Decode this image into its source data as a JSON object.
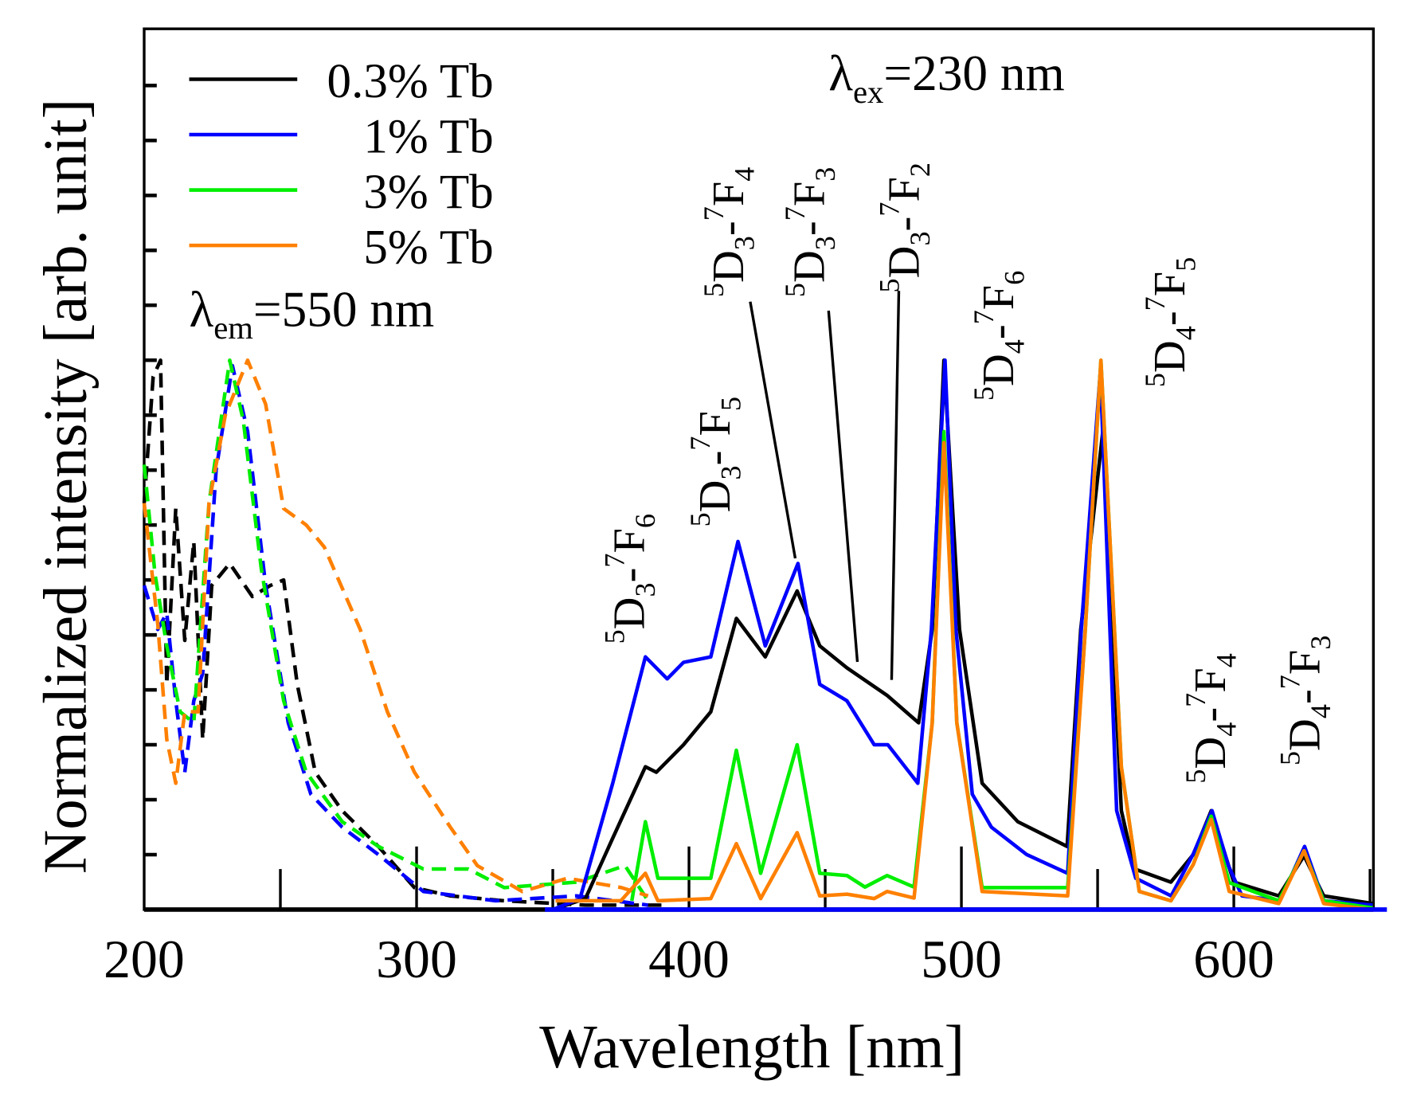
{
  "chart_data": {
    "type": "line",
    "title": "",
    "xlabel": "Wavelength [nm]",
    "ylabel": "Normalized intensity [arb. unit]",
    "xlim": [
      200,
      651
    ],
    "ylim": [
      0,
      1.6
    ],
    "xticks": [
      200,
      300,
      400,
      500,
      600
    ],
    "xtick_labels": [
      "200",
      "300",
      "400",
      "500",
      "600"
    ],
    "yticks_minor_step": 0.1,
    "ytick_labels_shown": false,
    "grid": false,
    "legend_position": "top-left",
    "legend": [
      {
        "name": "0.3% Tb",
        "color": "#000000"
      },
      {
        "name": "1% Tb",
        "color": "#0000ff"
      },
      {
        "name": "3% Tb",
        "color": "#00ee00"
      },
      {
        "name": "5% Tb",
        "color": "#ff8000"
      }
    ],
    "annotations": {
      "excitation_label": {
        "symbol": "λ",
        "sub": "em",
        "rest": "=550 nm"
      },
      "emission_label": {
        "symbol": "λ",
        "sub": "ex",
        "rest": "=230 nm"
      },
      "transitions": [
        {
          "u1": "5",
          "t1": "D",
          "s1": "3",
          "u2": "7",
          "t2": "F",
          "s2": "6"
        },
        {
          "u1": "5",
          "t1": "D",
          "s1": "3",
          "u2": "7",
          "t2": "F",
          "s2": "5"
        },
        {
          "u1": "5",
          "t1": "D",
          "s1": "3",
          "u2": "7",
          "t2": "F",
          "s2": "4"
        },
        {
          "u1": "5",
          "t1": "D",
          "s1": "3",
          "u2": "7",
          "t2": "F",
          "s2": "3"
        },
        {
          "u1": "5",
          "t1": "D",
          "s1": "3",
          "u2": "7",
          "t2": "F",
          "s2": "2"
        },
        {
          "u1": "5",
          "t1": "D",
          "s1": "4",
          "u2": "7",
          "t2": "F",
          "s2": "6"
        },
        {
          "u1": "5",
          "t1": "D",
          "s1": "4",
          "u2": "7",
          "t2": "F",
          "s2": "5"
        },
        {
          "u1": "5",
          "t1": "D",
          "s1": "4",
          "u2": "7",
          "t2": "F",
          "s2": "4"
        },
        {
          "u1": "5",
          "t1": "D",
          "s1": "4",
          "u2": "7",
          "t2": "F",
          "s2": "3"
        }
      ]
    },
    "series": [
      {
        "name": "0.3% Tb excitation",
        "color": "#000000",
        "style": "dashed",
        "x": [
          200,
          203.3,
          206,
          208.3,
          211.6,
          214.9,
          218.2,
          221.5,
          224.8,
          231.4,
          239.7,
          246.3,
          251.2,
          256.2,
          262.8,
          272.7,
          286,
          299.2,
          312.4,
          332.2,
          362,
          391.7
        ],
        "y": [
          0.74,
          0.97,
          1.0,
          0.41,
          0.73,
          0.49,
          0.67,
          0.31,
          0.59,
          0.63,
          0.57,
          0.59,
          0.6,
          0.41,
          0.25,
          0.18,
          0.115,
          0.04,
          0.025,
          0.016,
          0.008,
          0.008
        ]
      },
      {
        "name": "1% Tb excitation",
        "color": "#0000ff",
        "style": "dashed",
        "x": [
          200,
          205,
          208.3,
          211.6,
          214.9,
          218.2,
          221.5,
          226.4,
          232.4,
          238,
          244.6,
          252.9,
          261.2,
          272.7,
          286,
          302.5,
          329,
          358.7,
          385
        ],
        "y": [
          0.59,
          0.51,
          0.54,
          0.38,
          0.25,
          0.38,
          0.43,
          0.8,
          0.99,
          0.87,
          0.59,
          0.34,
          0.21,
          0.15,
          0.1,
          0.033,
          0.016,
          0.025,
          0.008
        ]
      },
      {
        "name": "3% Tb excitation",
        "color": "#00ee00",
        "style": "dashed",
        "x": [
          200,
          204,
          208.3,
          213.2,
          218.2,
          223.8,
          231.4,
          236.4,
          243,
          251.2,
          259.5,
          272.7,
          286,
          302.5,
          319,
          332.2,
          358.7,
          376.5,
          385
        ],
        "y": [
          0.81,
          0.61,
          0.48,
          0.36,
          0.34,
          0.74,
          1.0,
          0.89,
          0.62,
          0.38,
          0.25,
          0.16,
          0.115,
          0.074,
          0.074,
          0.04,
          0.05,
          0.08,
          0.016
        ]
      },
      {
        "name": "5% Tb excitation",
        "color": "#ff8000",
        "style": "dashed",
        "x": [
          200,
          205,
          208.3,
          211.6,
          214.9,
          219.8,
          223.8,
          229.8,
          238,
          244.6,
          251.2,
          259.5,
          266.1,
          279.3,
          289.3,
          299.2,
          312.4,
          322.3,
          338.8,
          355.4,
          375.2,
          385
        ],
        "y": [
          0.74,
          0.52,
          0.31,
          0.23,
          0.36,
          0.36,
          0.74,
          0.9,
          1.0,
          0.92,
          0.73,
          0.7,
          0.66,
          0.51,
          0.36,
          0.25,
          0.15,
          0.08,
          0.033,
          0.057,
          0.04,
          0.025
        ]
      },
      {
        "name": "0.3% Tb emission",
        "color": "#000000",
        "style": "solid",
        "x": [
          350,
          362,
          372,
          384,
          388,
          398,
          408,
          417.4,
          428,
          439.7,
          448,
          458,
          472.7,
          484.3,
          489.3,
          493.6,
          499.3,
          507.6,
          520.7,
          538.8,
          543.8,
          551.9,
          558.7,
          563.6,
          576.9,
          585.1,
          591.7,
          600,
          616.5,
          625.8,
          633,
          651
        ],
        "y": [
          0,
          0.02,
          0.13,
          0.26,
          0.25,
          0.3,
          0.36,
          0.53,
          0.46,
          0.58,
          0.48,
          0.44,
          0.39,
          0.34,
          0.51,
          1.0,
          0.51,
          0.23,
          0.16,
          0.115,
          0.51,
          0.87,
          0.18,
          0.074,
          0.05,
          0.1,
          0.18,
          0.05,
          0.025,
          0.098,
          0.025,
          0.011
        ]
      },
      {
        "name": "1% Tb emission",
        "color": "#0000ff",
        "style": "solid",
        "x": [
          350,
          360,
          372,
          384,
          392,
          398,
          408,
          418,
          428,
          440,
          448,
          458,
          468,
          473,
          484,
          489,
          494,
          498,
          504,
          511,
          524,
          539,
          544,
          551,
          557,
          564,
          577,
          585,
          592,
          598,
          603,
          617,
          626,
          633,
          651
        ],
        "y": [
          0,
          0.02,
          0.23,
          0.46,
          0.42,
          0.45,
          0.46,
          0.67,
          0.48,
          0.63,
          0.41,
          0.38,
          0.3,
          0.3,
          0.23,
          0.51,
          1.0,
          0.51,
          0.21,
          0.15,
          0.1,
          0.066,
          0.51,
          0.98,
          0.18,
          0.057,
          0.025,
          0.1,
          0.18,
          0.08,
          0.025,
          0.016,
          0.115,
          0.016,
          0.008
        ]
      },
      {
        "name": "3% Tb emission",
        "color": "#00ee00",
        "style": "solid",
        "x": [
          379,
          384,
          388.6,
          408,
          417.4,
          426.3,
          439.7,
          448,
          458,
          464.6,
          472.7,
          482.6,
          489.3,
          493.6,
          498.3,
          507.6,
          539,
          545.5,
          551.2,
          558.7,
          565.3,
          576.9,
          585.1,
          591.7,
          598.3,
          616.5,
          625.8,
          633,
          651
        ],
        "y": [
          0.016,
          0.16,
          0.057,
          0.057,
          0.29,
          0.066,
          0.3,
          0.066,
          0.062,
          0.041,
          0.062,
          0.041,
          0.34,
          0.87,
          0.34,
          0.04,
          0.04,
          0.51,
          1.0,
          0.26,
          0.033,
          0.016,
          0.082,
          0.17,
          0.049,
          0.016,
          0.107,
          0.016,
          0.003
        ]
      },
      {
        "name": "5% Tb emission",
        "color": "#ff8000",
        "style": "solid",
        "x": [
          351,
          375,
          384,
          388.6,
          408,
          417.4,
          426.3,
          439.7,
          448,
          458,
          468,
          472.7,
          482.6,
          489.3,
          493.6,
          498.3,
          507.6,
          539,
          545.5,
          551.2,
          558.7,
          565.3,
          576.9,
          585.1,
          591.7,
          598.3,
          616.5,
          625.8,
          633,
          651
        ],
        "y": [
          0.016,
          0.016,
          0.066,
          0.016,
          0.02,
          0.12,
          0.02,
          0.14,
          0.025,
          0.028,
          0.02,
          0.033,
          0.021,
          0.34,
          0.85,
          0.34,
          0.033,
          0.025,
          0.51,
          1.0,
          0.26,
          0.033,
          0.016,
          0.082,
          0.164,
          0.033,
          0.011,
          0.107,
          0.011,
          0.0
        ]
      }
    ]
  }
}
